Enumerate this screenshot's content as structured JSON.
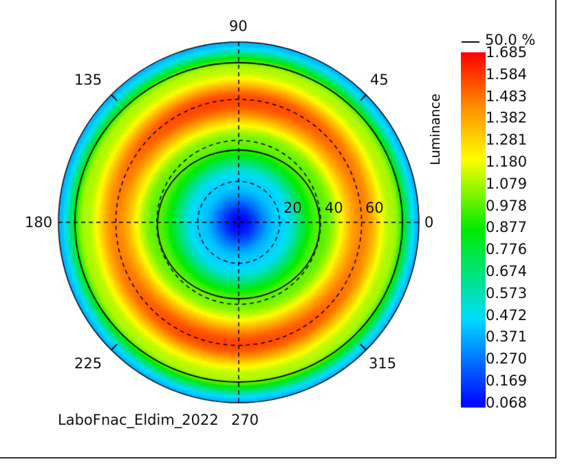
{
  "chart_data": {
    "type": "heatmap",
    "subtype": "polar",
    "title": "LaboFnac_Eldim_2022",
    "colorbar_label": "Luminance",
    "contour_label": "50.0 %",
    "colorbar_ticks": [
      "1.685",
      "1.584",
      "1.483",
      "1.382",
      "1.281",
      "1.180",
      "1.079",
      "0.978",
      "0.877",
      "0.776",
      "0.674",
      "0.573",
      "0.472",
      "0.371",
      "0.270",
      "0.169",
      "0.068"
    ],
    "value_range": [
      0.068,
      1.685
    ],
    "angle_labels": [
      {
        "angle": 0,
        "text": "0"
      },
      {
        "angle": 45,
        "text": "45"
      },
      {
        "angle": 90,
        "text": "90"
      },
      {
        "angle": 135,
        "text": "135"
      },
      {
        "angle": 180,
        "text": "180"
      },
      {
        "angle": 225,
        "text": "225"
      },
      {
        "angle": 270,
        "text": "270"
      },
      {
        "angle": 315,
        "text": "315"
      }
    ],
    "radial_labels": [
      "20",
      "40",
      "60"
    ],
    "radial_range": [
      0,
      88
    ],
    "profile": {
      "theta_deg": [
        0,
        20,
        40,
        60,
        75,
        88
      ],
      "luminance": [
        0.068,
        0.45,
        1.0,
        1.5,
        1.1,
        0.4
      ]
    },
    "peak_regions": [
      {
        "theta": 135,
        "value": 1.685
      },
      {
        "theta": 225,
        "value": 1.685
      }
    ]
  }
}
